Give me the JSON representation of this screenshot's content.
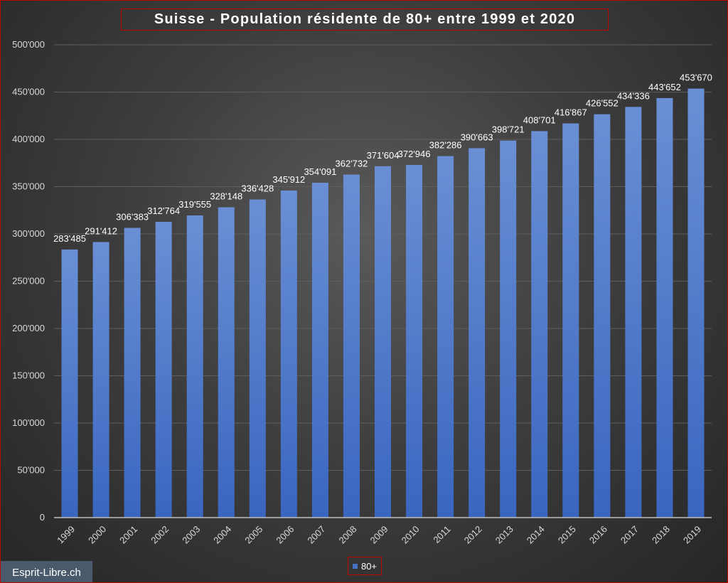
{
  "chart_data": {
    "type": "bar",
    "title": "Suisse - Population résidente de 80+ entre 1999 et 2020",
    "categories": [
      "1999",
      "2000",
      "2001",
      "2002",
      "2003",
      "2004",
      "2005",
      "2006",
      "2007",
      "2008",
      "2009",
      "2010",
      "2011",
      "2012",
      "2013",
      "2014",
      "2015",
      "2016",
      "2017",
      "2018",
      "2019"
    ],
    "series": [
      {
        "name": "80+",
        "values": [
          283485,
          291412,
          306383,
          312764,
          319555,
          328148,
          336428,
          345912,
          354091,
          362732,
          371604,
          372946,
          382286,
          390663,
          398721,
          408701,
          416867,
          426552,
          434336,
          443652,
          453670
        ],
        "data_labels": [
          "283'485",
          "291'412",
          "306'383",
          "312'764",
          "319'555",
          "328'148",
          "336'428",
          "345'912",
          "354'091",
          "362'732",
          "371'604",
          "372'946",
          "382'286",
          "390'663",
          "398'721",
          "408'701",
          "416'867",
          "426'552",
          "434'336",
          "443'652",
          "453'670"
        ]
      }
    ],
    "yticks": [
      0,
      50000,
      100000,
      150000,
      200000,
      250000,
      300000,
      350000,
      400000,
      450000,
      500000
    ],
    "ytick_labels": [
      "0",
      "50'000",
      "100'000",
      "150'000",
      "200'000",
      "250'000",
      "300'000",
      "350'000",
      "400'000",
      "450'000",
      "500'000"
    ],
    "ylim": [
      0,
      500000
    ],
    "xlabel": "",
    "ylabel": "",
    "grid": true,
    "legend_position": "bottom",
    "colors": {
      "bar": "#4472c4",
      "bar_top": "#6a8fd4",
      "background": "#3e3e3e",
      "border": "#c00000",
      "text": "#ffffff"
    }
  },
  "watermark": "Esprit-Libre.ch"
}
